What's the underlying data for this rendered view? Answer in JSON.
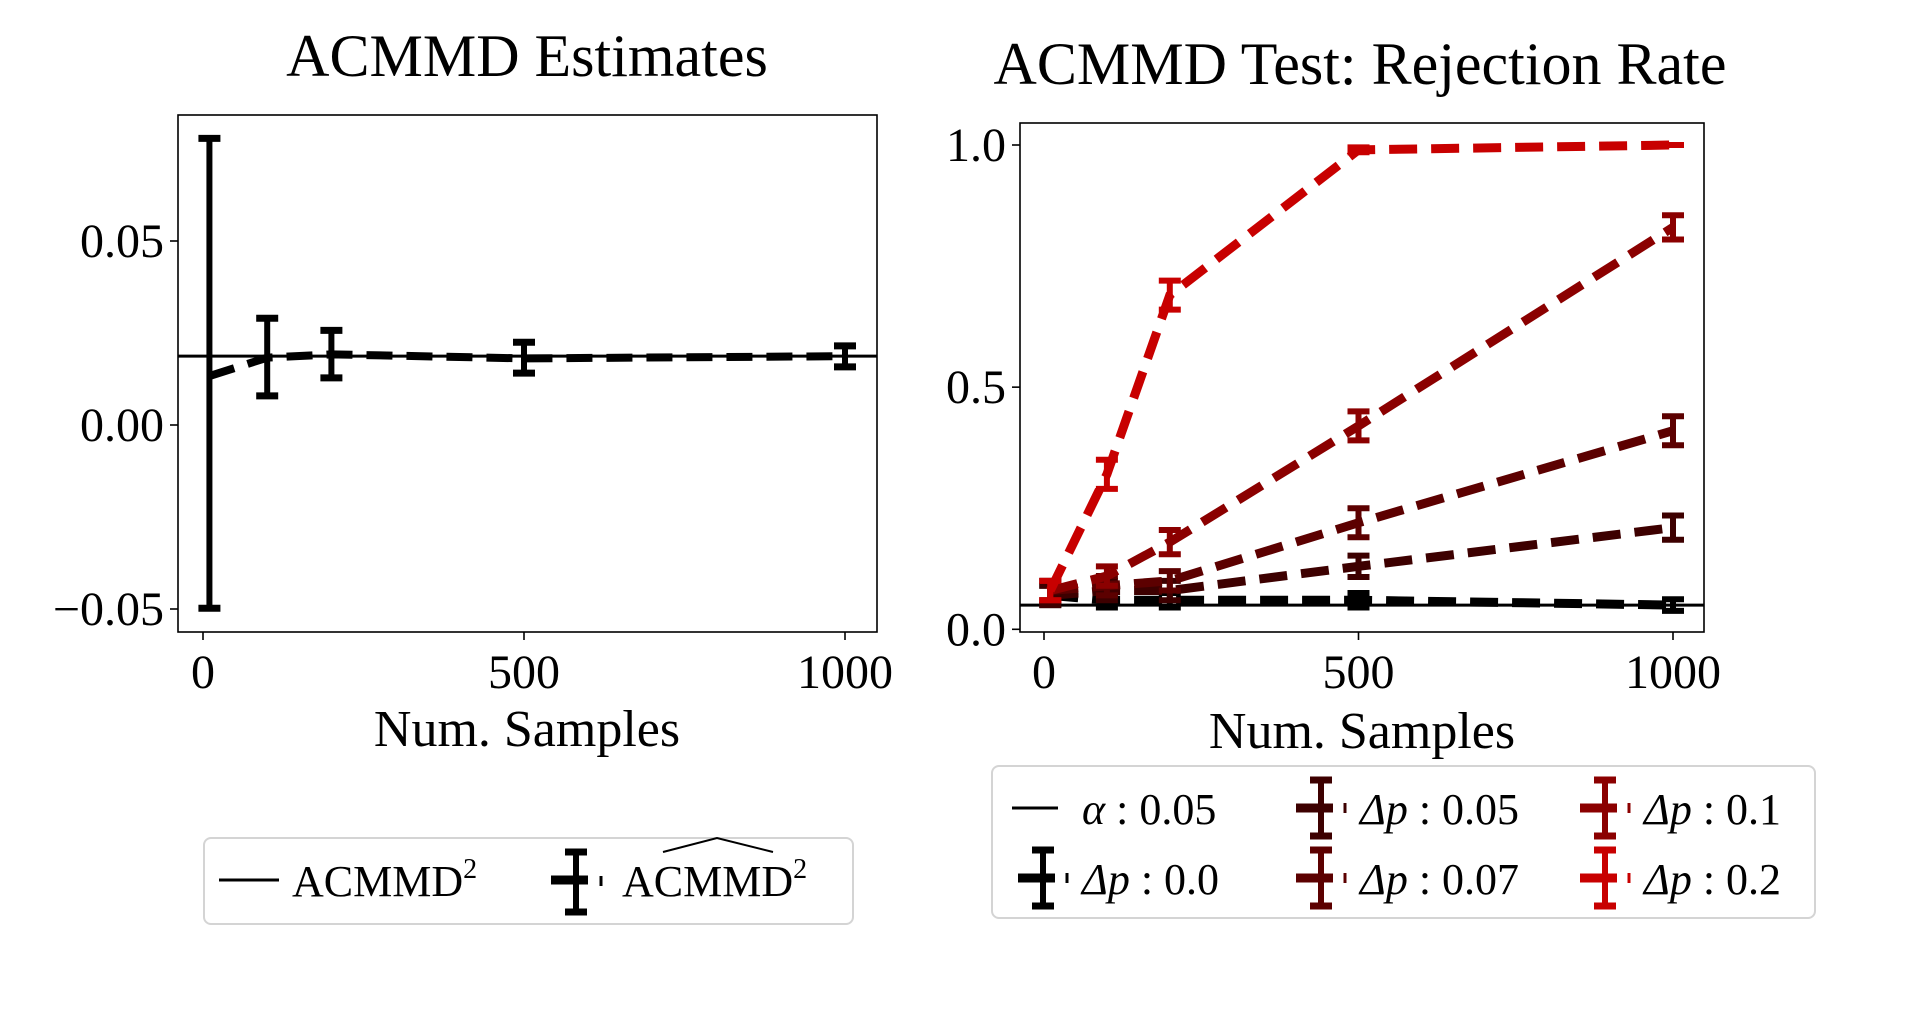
{
  "figure": {
    "background": "#ffffff"
  },
  "chart_data": [
    {
      "type": "line",
      "title": "ACMMD Estimates",
      "xlabel": "Num. Samples",
      "ylabel": "",
      "xlim": [
        -40,
        1040
      ],
      "ylim": [
        -0.056,
        0.084
      ],
      "xticks": [
        0,
        500,
        1000
      ],
      "xtick_labels": [
        "0",
        "500",
        "1000"
      ],
      "yticks": [
        -0.05,
        0.0,
        0.05
      ],
      "ytick_labels": [
        "−0.05",
        "0.00",
        "0.05"
      ],
      "grid": false,
      "legend": {
        "placement": "below",
        "entries": [
          {
            "label": "ACMMD",
            "sup": "2",
            "hat": false,
            "style": "solid-line",
            "color": "#000000"
          },
          {
            "label": "ACMMD",
            "sup": "2",
            "hat": true,
            "style": "dashed-errorbar",
            "color": "#000000"
          }
        ]
      },
      "reference_line": {
        "name": "ACMMD² (true)",
        "y": 0.0187,
        "color": "#000000",
        "style": "solid"
      },
      "x": [
        10,
        100,
        200,
        500,
        1000
      ],
      "series": [
        {
          "name": "ACMMD² estimate",
          "color": "#000000",
          "style": "dashed",
          "values": [
            0.0133,
            0.0183,
            0.0192,
            0.0181,
            0.0187
          ],
          "err_low": [
            -0.0498,
            0.0079,
            0.0128,
            0.0141,
            0.0158
          ],
          "err_high": [
            0.0779,
            0.029,
            0.0257,
            0.0225,
            0.0215
          ]
        }
      ]
    },
    {
      "type": "line",
      "title": "ACMMD Test: Rejection Rate",
      "xlabel": "Num. Samples",
      "ylabel": "",
      "xlim": [
        -40,
        1050
      ],
      "ylim": [
        -0.005,
        1.05
      ],
      "xticks": [
        0,
        500,
        1000
      ],
      "xtick_labels": [
        "0",
        "500",
        "1000"
      ],
      "yticks": [
        0.0,
        0.5,
        1.0
      ],
      "ytick_labels": [
        "0.0",
        "0.5",
        "1.0"
      ],
      "grid": false,
      "legend": {
        "placement": "below",
        "columns": 3,
        "entries": [
          {
            "symbol": "α",
            "text": " : 0.05",
            "style": "solid-line",
            "color": "#000000"
          },
          {
            "symbol": "Δp",
            "text": " : 0.0",
            "style": "dashed-errorbar",
            "color": "#000000"
          },
          {
            "symbol": "Δp",
            "text": " : 0.05",
            "style": "dashed-errorbar",
            "color": "#3d0000"
          },
          {
            "symbol": "Δp",
            "text": " : 0.07",
            "style": "dashed-errorbar",
            "color": "#5c0000"
          },
          {
            "symbol": "Δp",
            "text": " : 0.1",
            "style": "dashed-errorbar",
            "color": "#8b0000"
          },
          {
            "symbol": "Δp",
            "text": " : 0.2",
            "style": "dashed-errorbar",
            "color": "#c80000"
          }
        ]
      },
      "reference_line": {
        "name": "α : 0.05",
        "y": 0.05,
        "color": "#000000",
        "style": "solid"
      },
      "x": [
        10,
        100,
        200,
        500,
        1000
      ],
      "series": [
        {
          "name": "Δp : 0.0",
          "color": "#000000",
          "values": [
            0.07,
            0.06,
            0.06,
            0.06,
            0.05
          ],
          "err": [
            0.02,
            0.015,
            0.015,
            0.015,
            0.012
          ]
        },
        {
          "name": "Δp : 0.05",
          "color": "#3d0000",
          "values": [
            0.07,
            0.08,
            0.08,
            0.13,
            0.21
          ],
          "err": [
            0.02,
            0.02,
            0.02,
            0.022,
            0.025
          ]
        },
        {
          "name": "Δp : 0.07",
          "color": "#5c0000",
          "values": [
            0.08,
            0.09,
            0.1,
            0.22,
            0.41
          ],
          "err": [
            0.02,
            0.02,
            0.02,
            0.03,
            0.03
          ]
        },
        {
          "name": "Δp : 0.1",
          "color": "#8b0000",
          "values": [
            0.08,
            0.11,
            0.18,
            0.42,
            0.83
          ],
          "err": [
            0.02,
            0.02,
            0.025,
            0.03,
            0.025
          ]
        },
        {
          "name": "Δp : 0.2",
          "color": "#c80000",
          "values": [
            0.08,
            0.32,
            0.69,
            0.99,
            1.0
          ],
          "err": [
            0.02,
            0.03,
            0.03,
            0.005,
            0.0
          ]
        }
      ]
    }
  ]
}
